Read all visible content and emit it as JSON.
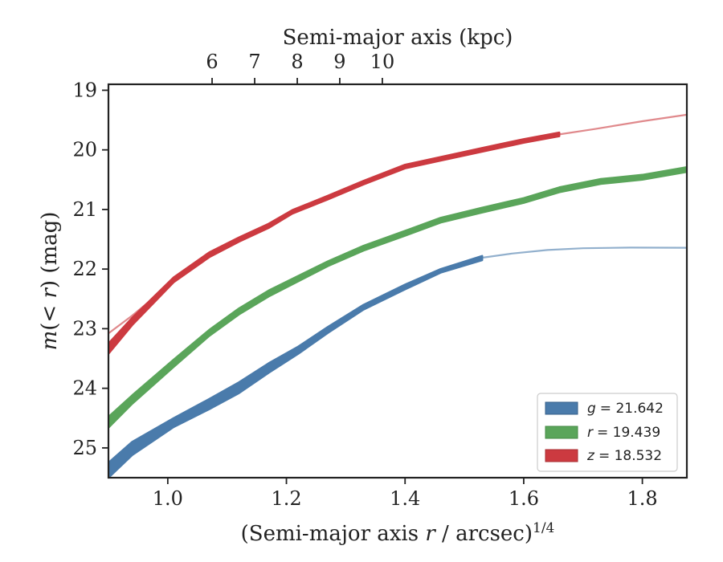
{
  "chart_data": {
    "type": "line",
    "xlabel_parts": [
      "(Semi-major axis ",
      "r",
      " / arcsec)",
      "1/4"
    ],
    "top_xlabel": "Semi-major axis (kpc)",
    "ylabel_parts": [
      "m",
      "(< ",
      "r",
      ") (mag)"
    ],
    "xlim": [
      0.9,
      1.875
    ],
    "ylim": [
      25.5,
      18.9
    ],
    "x_ticks": [
      1.0,
      1.2,
      1.4,
      1.6,
      1.8
    ],
    "x_tick_labels": [
      "1.0",
      "1.2",
      "1.4",
      "1.6",
      "1.8"
    ],
    "y_ticks": [
      19,
      20,
      21,
      22,
      23,
      24,
      25
    ],
    "y_tick_labels": [
      "19",
      "20",
      "21",
      "22",
      "23",
      "24",
      "25"
    ],
    "top_ticks": [
      6,
      7,
      8,
      9,
      10
    ],
    "top_tick_labels": [
      "6",
      "7",
      "8",
      "9",
      "10"
    ],
    "top_tick_positions_x": [
      1.0747,
      1.1465,
      1.2183,
      1.2899,
      1.3617
    ],
    "legend_position": "lower right",
    "grid": false,
    "series": [
      {
        "key": "g",
        "name": "g = 21.642",
        "label_var": "g",
        "label_value": "= 21.642",
        "color": "#4a7bab",
        "band": [
          {
            "x": 0.9,
            "lo": 25.25,
            "hi": 25.5
          },
          {
            "x": 0.94,
            "lo": 24.9,
            "hi": 25.12
          },
          {
            "x": 1.01,
            "lo": 24.5,
            "hi": 24.65
          },
          {
            "x": 1.07,
            "lo": 24.18,
            "hi": 24.35
          },
          {
            "x": 1.12,
            "lo": 23.9,
            "hi": 24.08
          },
          {
            "x": 1.17,
            "lo": 23.58,
            "hi": 23.74
          },
          {
            "x": 1.22,
            "lo": 23.3,
            "hi": 23.42
          },
          {
            "x": 1.27,
            "lo": 22.97,
            "hi": 23.07
          },
          {
            "x": 1.33,
            "lo": 22.6,
            "hi": 22.68
          },
          {
            "x": 1.4,
            "lo": 22.26,
            "hi": 22.34
          },
          {
            "x": 1.46,
            "lo": 22.0,
            "hi": 22.06
          },
          {
            "x": 1.53,
            "lo": 21.78,
            "hi": 21.85
          }
        ],
        "extension": [
          {
            "x": 1.53,
            "y": 21.81
          },
          {
            "x": 1.58,
            "y": 21.74
          },
          {
            "x": 1.64,
            "y": 21.68
          },
          {
            "x": 1.7,
            "y": 21.65
          },
          {
            "x": 1.78,
            "y": 21.64
          },
          {
            "x": 1.875,
            "y": 21.642
          }
        ]
      },
      {
        "key": "r",
        "name": "r = 19.439",
        "label_var": "r",
        "label_value": "= 19.439",
        "color": "#5aa55a",
        "band": [
          {
            "x": 0.9,
            "lo": 24.48,
            "hi": 24.66
          },
          {
            "x": 0.94,
            "lo": 24.12,
            "hi": 24.26
          },
          {
            "x": 1.01,
            "lo": 23.52,
            "hi": 23.64
          },
          {
            "x": 1.07,
            "lo": 23.02,
            "hi": 23.12
          },
          {
            "x": 1.12,
            "lo": 22.66,
            "hi": 22.76
          },
          {
            "x": 1.17,
            "lo": 22.36,
            "hi": 22.46
          },
          {
            "x": 1.27,
            "lo": 21.87,
            "hi": 21.95
          },
          {
            "x": 1.33,
            "lo": 21.61,
            "hi": 21.69
          },
          {
            "x": 1.4,
            "lo": 21.36,
            "hi": 21.44
          },
          {
            "x": 1.46,
            "lo": 21.14,
            "hi": 21.22
          },
          {
            "x": 1.53,
            "lo": 20.97,
            "hi": 21.05
          },
          {
            "x": 1.6,
            "lo": 20.81,
            "hi": 20.89
          },
          {
            "x": 1.66,
            "lo": 20.63,
            "hi": 20.71
          },
          {
            "x": 1.73,
            "lo": 20.49,
            "hi": 20.57
          },
          {
            "x": 1.8,
            "lo": 20.42,
            "hi": 20.5
          },
          {
            "x": 1.875,
            "lo": 20.29,
            "hi": 20.37
          }
        ],
        "extension": []
      },
      {
        "key": "z",
        "name": "z = 18.532",
        "label_var": "z",
        "label_value": "= 18.532",
        "color": "#cc3a40",
        "band": [
          {
            "x": 0.9,
            "lo": 23.25,
            "hi": 23.42
          },
          {
            "x": 0.94,
            "lo": 22.82,
            "hi": 22.94
          },
          {
            "x": 1.01,
            "lo": 22.14,
            "hi": 22.22
          },
          {
            "x": 1.07,
            "lo": 21.72,
            "hi": 21.8
          },
          {
            "x": 1.12,
            "lo": 21.47,
            "hi": 21.54
          },
          {
            "x": 1.17,
            "lo": 21.24,
            "hi": 21.31
          },
          {
            "x": 1.21,
            "lo": 21.01,
            "hi": 21.07
          },
          {
            "x": 1.27,
            "lo": 20.77,
            "hi": 20.83
          },
          {
            "x": 1.33,
            "lo": 20.52,
            "hi": 20.58
          },
          {
            "x": 1.4,
            "lo": 20.25,
            "hi": 20.31
          },
          {
            "x": 1.46,
            "lo": 20.12,
            "hi": 20.18
          },
          {
            "x": 1.53,
            "lo": 19.97,
            "hi": 20.03
          },
          {
            "x": 1.6,
            "lo": 19.82,
            "hi": 19.88
          },
          {
            "x": 1.66,
            "lo": 19.71,
            "hi": 19.77
          }
        ],
        "extension": [
          {
            "x": 1.66,
            "y": 19.74
          },
          {
            "x": 1.72,
            "y": 19.65
          },
          {
            "x": 1.8,
            "y": 19.52
          },
          {
            "x": 1.875,
            "y": 19.41
          }
        ],
        "thin_start": [
          {
            "x": 0.9,
            "y": 23.08
          },
          {
            "x": 0.94,
            "y": 22.78
          },
          {
            "x": 0.98,
            "y": 22.45
          },
          {
            "x": 1.01,
            "y": 22.18
          }
        ]
      }
    ]
  }
}
